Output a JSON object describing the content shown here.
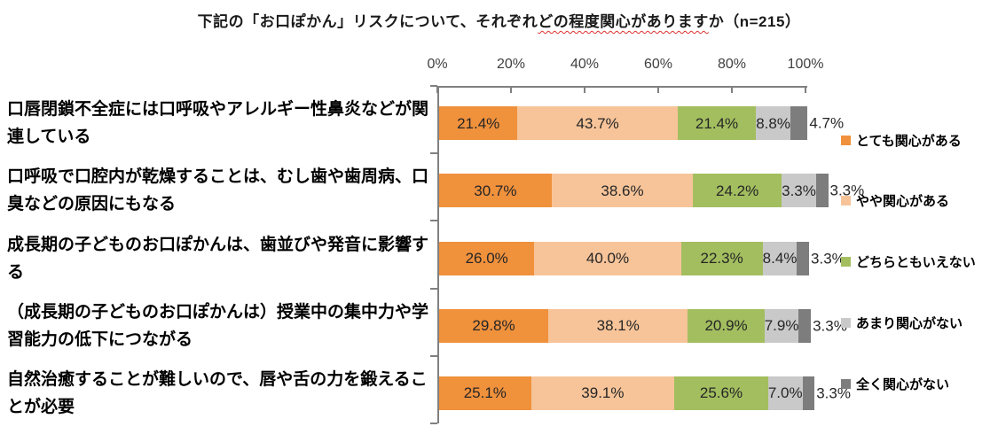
{
  "title": {
    "prefix": "下記の「お口ぽかん」リスクについて、それぞれ",
    "underlined": "どの程度関心があります",
    "suffix": "か（n=215）"
  },
  "axis": {
    "ticks": [
      "0%",
      "20%",
      "40%",
      "60%",
      "80%",
      "100%"
    ]
  },
  "legend": {
    "items": [
      {
        "label": "とても関心がある",
        "color": "#F0913C"
      },
      {
        "label": "やや関心がある",
        "color": "#F7C499"
      },
      {
        "label": "どちらともいえない",
        "color": "#A3BE5F"
      },
      {
        "label": "あまり関心がない",
        "color": "#C9C9C9"
      },
      {
        "label": "全く関心がない",
        "color": "#7D7D7D"
      }
    ]
  },
  "chart_data": {
    "type": "bar",
    "variant": "horizontal-stacked-100",
    "title": "下記の「お口ぽかん」リスクについて、それぞれどの程度関心がありますか（n=215）",
    "n": 215,
    "xlim": [
      0,
      100
    ],
    "x_ticks": [
      "0%",
      "20%",
      "40%",
      "60%",
      "80%",
      "100%"
    ],
    "grid": false,
    "legend_position": "right",
    "categories": [
      "口唇閉鎖不全症には口呼吸やアレルギー性鼻炎などが関連している",
      "口呼吸で口腔内が乾燥することは、むし歯や歯周病、口臭などの原因にもなる",
      "成長期の子どものお口ぽかんは、歯並びや発音に影響する",
      "（成長期の子どものお口ぽかんは）授業中の集中力や学習能力の低下につながる",
      "自然治癒することが難しいので、唇や舌の力を鍛えることが必要"
    ],
    "series": [
      {
        "name": "とても関心がある",
        "color": "#F0913C",
        "values": [
          21.4,
          30.7,
          26.0,
          29.8,
          25.1
        ],
        "labels": [
          "21.4%",
          "30.7%",
          "26.0%",
          "29.8%",
          "25.1%"
        ]
      },
      {
        "name": "やや関心がある",
        "color": "#F7C499",
        "values": [
          43.7,
          38.6,
          40.0,
          38.1,
          39.1
        ],
        "labels": [
          "43.7%",
          "38.6%",
          "40.0%",
          "38.1%",
          "39.1%"
        ]
      },
      {
        "name": "どちらともいえない",
        "color": "#A3BE5F",
        "values": [
          21.4,
          24.2,
          22.3,
          20.9,
          25.6
        ],
        "labels": [
          "21.4%",
          "24.2%",
          "22.3%",
          "20.9%",
          "25.6%"
        ]
      },
      {
        "name": "あまり関心がない",
        "color": "#C9C9C9",
        "values": [
          8.8,
          3.3,
          8.4,
          7.9,
          7.0
        ],
        "labels": [
          "8.8%",
          "3.3%",
          "8.4%",
          "7.9%",
          "7.0%"
        ]
      },
      {
        "name": "全く関心がない",
        "color": "#7D7D7D",
        "values": [
          4.7,
          3.3,
          3.3,
          3.3,
          3.3
        ],
        "labels": [
          "4.7%",
          "3.3%",
          "3.3%",
          "3.3%",
          "3.3%"
        ]
      }
    ]
  }
}
